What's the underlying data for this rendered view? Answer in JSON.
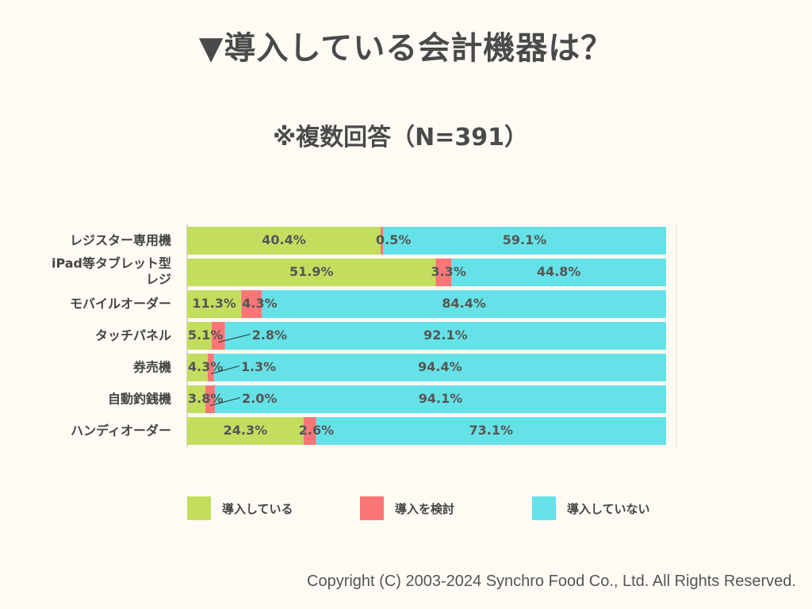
{
  "colors": {
    "introduced": "#c3de5f",
    "considering": "#fa7676",
    "not_introduced": "#65e2e7"
  },
  "chart_data": {
    "type": "bar",
    "orientation": "horizontal",
    "stacked": true,
    "title": "▼導入している会計機器は？",
    "subtitle": "※複数回答（N=391）",
    "categories": [
      "レジスター専用機",
      "iPad等タブレット型\nレジ",
      "モバイルオーダー",
      "タッチパネル",
      "券売機",
      "自動釣銭機",
      "ハンディオーダー"
    ],
    "series": [
      {
        "name": "導入している",
        "values": [
          40.4,
          51.9,
          11.3,
          5.1,
          4.3,
          3.8,
          24.3
        ]
      },
      {
        "name": "導入を検討",
        "values": [
          0.5,
          3.3,
          4.3,
          2.8,
          1.3,
          2.0,
          2.6
        ]
      },
      {
        "name": "導入していない",
        "values": [
          59.1,
          44.8,
          84.4,
          92.1,
          94.4,
          94.1,
          73.1
        ]
      }
    ],
    "value_labels": [
      [
        "40.4%",
        "0.5%",
        "59.1%"
      ],
      [
        "51.9%",
        "3.3%",
        "44.8%"
      ],
      [
        "11.3%",
        "4.3%",
        "84.4%"
      ],
      [
        "5.1%",
        "2.8%",
        "92.1%"
      ],
      [
        "4.3%",
        "1.3%",
        "94.4%"
      ],
      [
        "3.8%",
        "2.0%",
        "94.1%"
      ],
      [
        "24.3%",
        "2.6%",
        "73.1%"
      ]
    ],
    "xlim": [
      0,
      100
    ],
    "legend_position": "bottom"
  },
  "legend": [
    {
      "label": "導入している"
    },
    {
      "label": "導入を検討"
    },
    {
      "label": "導入していない"
    }
  ],
  "footer": "Copyright (C) 2003-2024  Synchro Food Co., Ltd. All Rights Reserved."
}
